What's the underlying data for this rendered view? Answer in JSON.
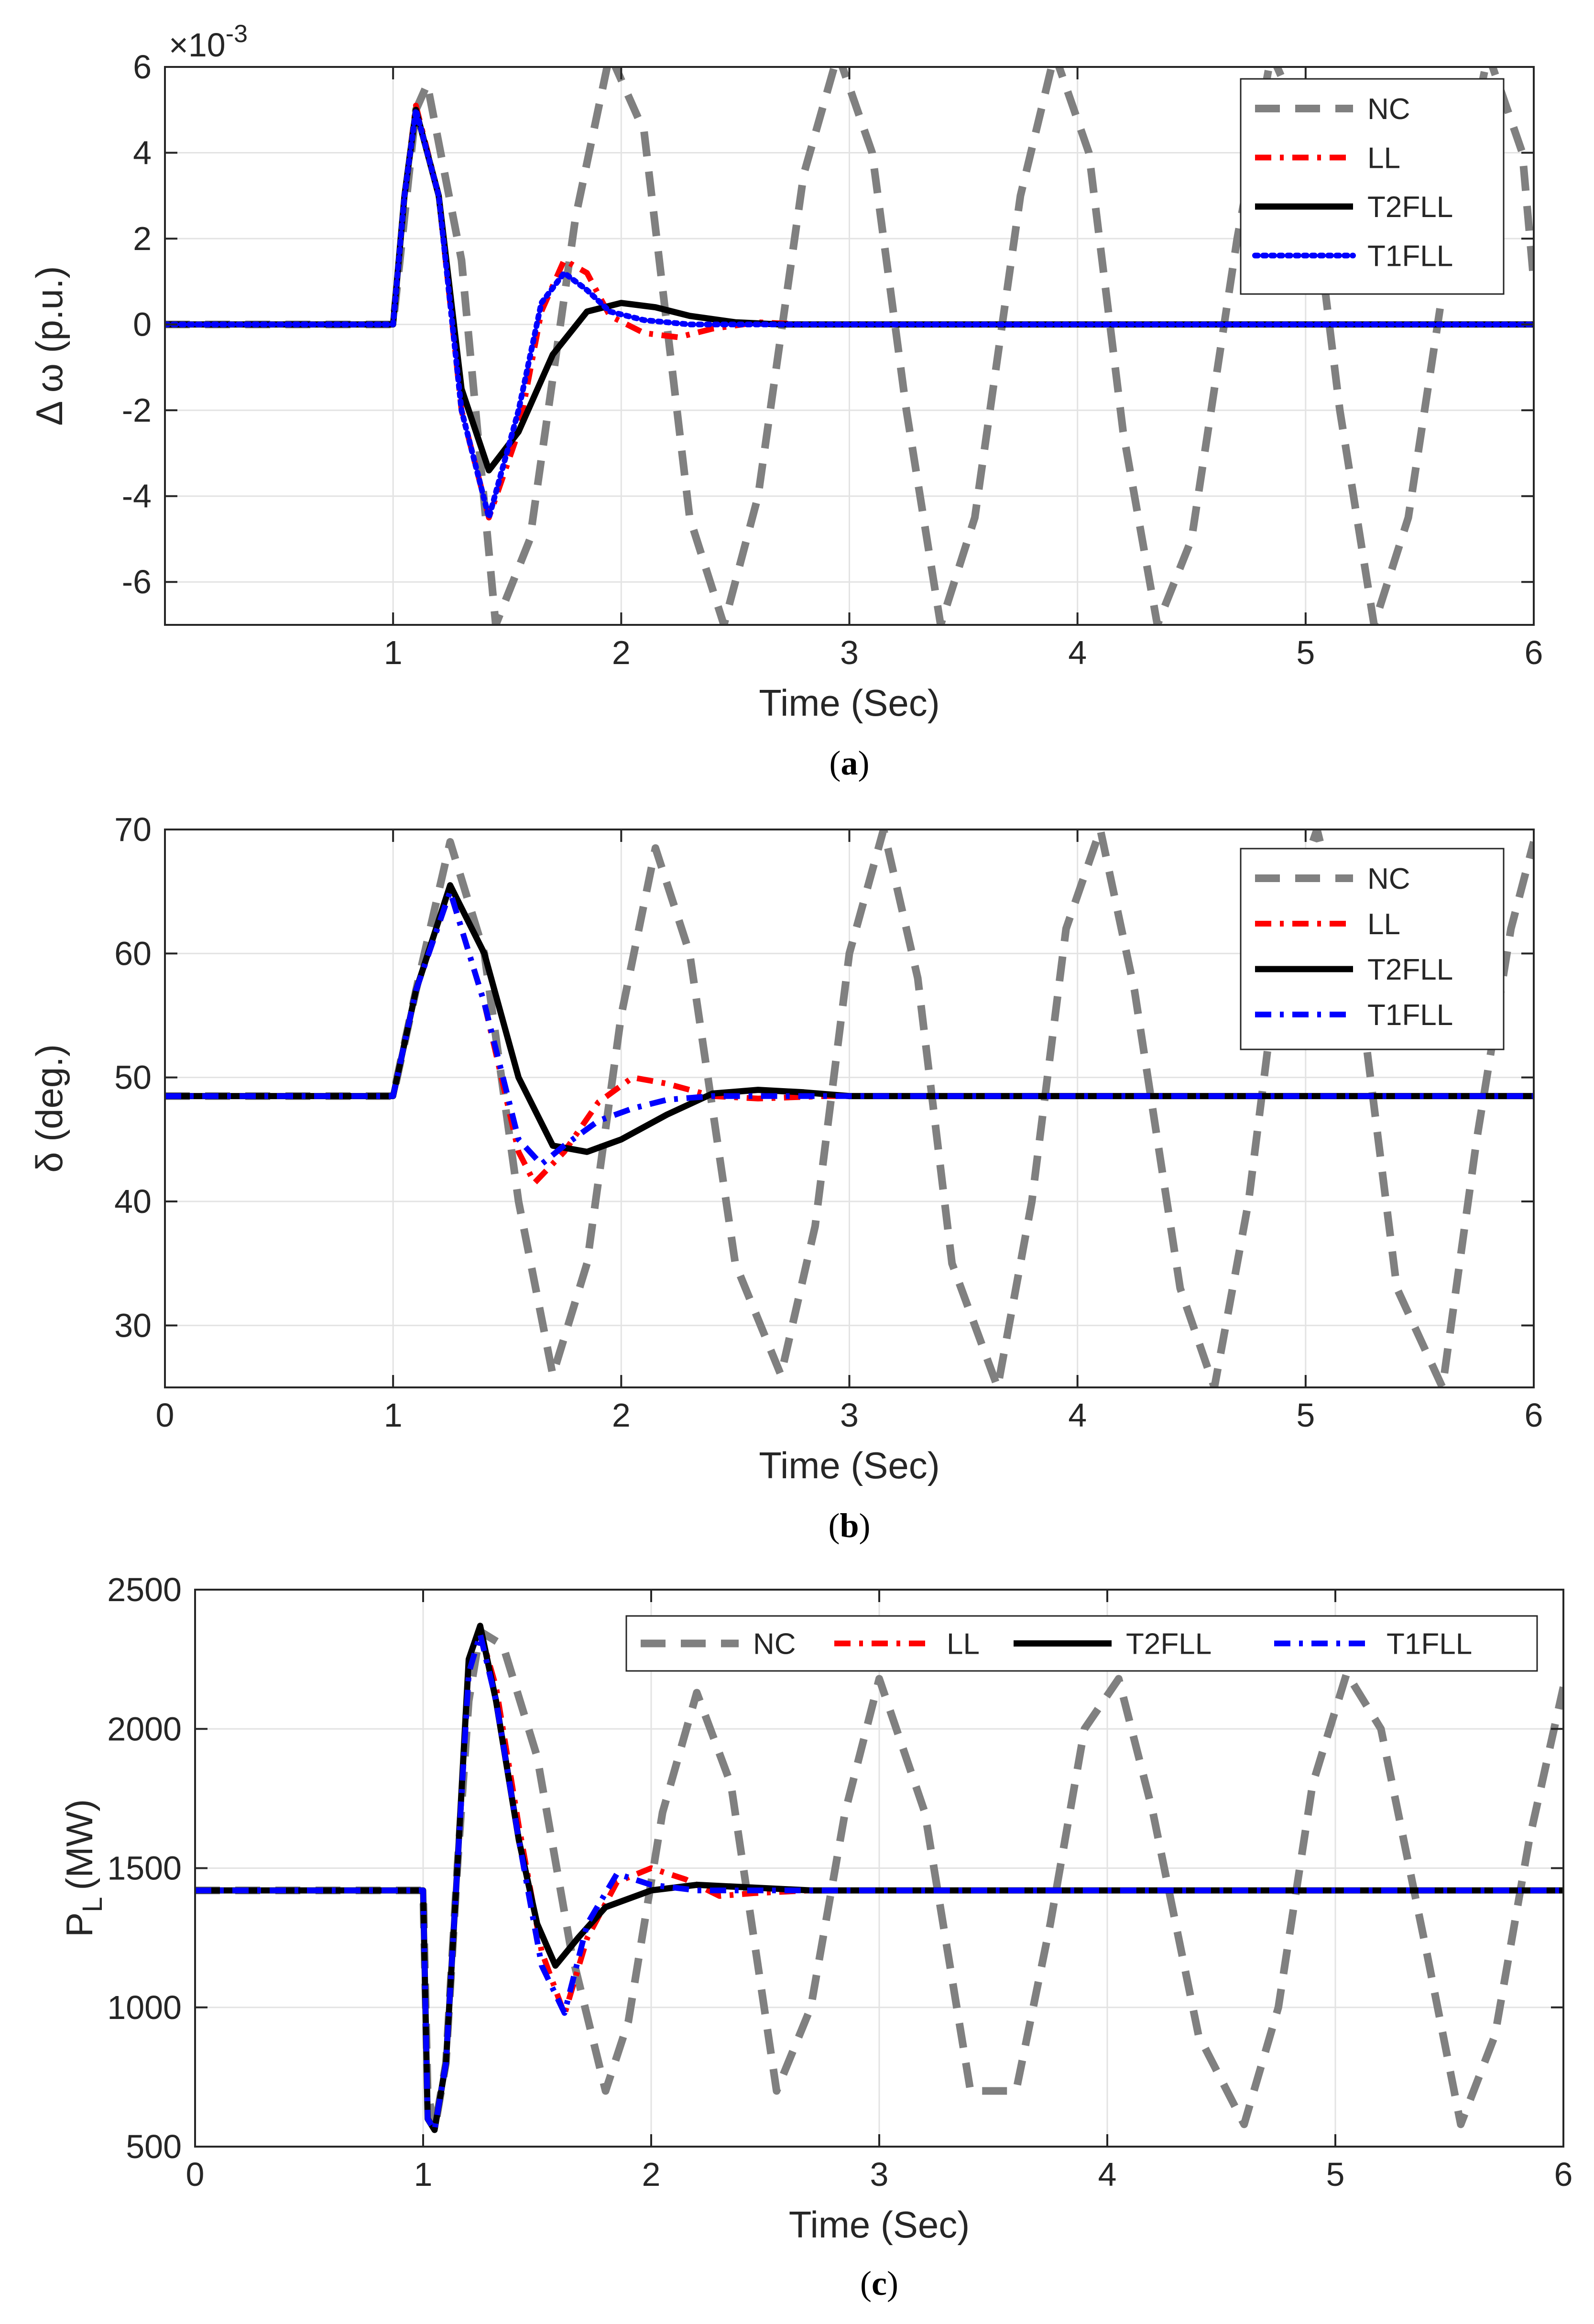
{
  "chart_data": [
    {
      "type": "line",
      "id": "a",
      "caption": "a",
      "xlabel": "Time (Sec)",
      "ylabel": "Δ ω (p.u.)",
      "exponent_label": "×10",
      "exponent_power": "-3",
      "xlim": [
        0,
        6
      ],
      "ylim": [
        -7,
        6
      ],
      "xticks": [
        "1",
        "2",
        "3",
        "4",
        "5",
        "6"
      ],
      "yticks": [
        "6",
        "4",
        "2",
        "0",
        "-2",
        "-4",
        "-6"
      ],
      "grid": true,
      "legend": {
        "placement": "top-right",
        "orientation": "vertical",
        "entries": [
          "NC",
          "LL",
          "T2FLL",
          "T1FLL"
        ]
      },
      "series": [
        {
          "name": "NC",
          "style": "dashed",
          "color": "#808080",
          "x": [
            0,
            1.0,
            1.1,
            1.15,
            1.3,
            1.45,
            1.6,
            1.8,
            1.95,
            2.1,
            2.3,
            2.45,
            2.6,
            2.8,
            2.95,
            3.1,
            3.25,
            3.4,
            3.55,
            3.75,
            3.9,
            4.05,
            4.2,
            4.35,
            4.5,
            4.7,
            4.85,
            5.0,
            5.15,
            5.3,
            5.45,
            5.65,
            5.8,
            5.95,
            6.0
          ],
          "y": [
            0,
            0,
            5.0,
            5.6,
            1.5,
            -7,
            -5,
            2.5,
            6.3,
            4.5,
            -4.5,
            -7,
            -4,
            3.5,
            6.3,
            4.0,
            -2.0,
            -7,
            -4.5,
            3.0,
            6.3,
            4.0,
            -2.5,
            -7,
            -5,
            2.0,
            6.3,
            4.5,
            -2.0,
            -7,
            -4.5,
            2.5,
            6.3,
            4.0,
            1.0
          ]
        },
        {
          "name": "LL",
          "style": "dashdot",
          "color": "#ff0000",
          "x": [
            0,
            1.0,
            1.05,
            1.1,
            1.2,
            1.3,
            1.42,
            1.55,
            1.65,
            1.75,
            1.85,
            1.95,
            2.1,
            2.25,
            2.4,
            2.6,
            2.8,
            6.0
          ],
          "y": [
            0,
            0,
            3.0,
            5.1,
            3.0,
            -2.0,
            -4.5,
            -2.5,
            0.3,
            1.5,
            1.2,
            0.2,
            -0.2,
            -0.3,
            -0.1,
            0.05,
            0,
            0
          ]
        },
        {
          "name": "T2FLL",
          "style": "solid",
          "color": "#000000",
          "x": [
            0,
            1.0,
            1.05,
            1.1,
            1.2,
            1.3,
            1.42,
            1.55,
            1.7,
            1.85,
            2.0,
            2.15,
            2.3,
            2.5,
            2.7,
            6.0
          ],
          "y": [
            0,
            0,
            3.0,
            5.0,
            3.0,
            -1.5,
            -3.4,
            -2.5,
            -0.7,
            0.3,
            0.5,
            0.4,
            0.2,
            0.05,
            0,
            0
          ]
        },
        {
          "name": "T1FLL",
          "style": "dotted",
          "color": "#0000ff",
          "x": [
            0,
            1.0,
            1.05,
            1.1,
            1.2,
            1.3,
            1.42,
            1.55,
            1.65,
            1.75,
            1.85,
            1.95,
            2.1,
            2.3,
            2.5,
            6.0
          ],
          "y": [
            0,
            0,
            3.0,
            5.0,
            3.0,
            -2.0,
            -4.5,
            -2.0,
            0.5,
            1.2,
            0.8,
            0.3,
            0.1,
            0,
            0,
            0
          ]
        }
      ]
    },
    {
      "type": "line",
      "id": "b",
      "caption": "b",
      "xlabel": "Time (Sec)",
      "ylabel": "δ (deg.)",
      "xlim": [
        0,
        6
      ],
      "ylim": [
        25,
        70
      ],
      "xticks": [
        "0",
        "1",
        "2",
        "3",
        "4",
        "5",
        "6"
      ],
      "yticks": [
        "70",
        "60",
        "50",
        "40",
        "30"
      ],
      "grid": true,
      "legend": {
        "placement": "top-right",
        "orientation": "vertical",
        "entries": [
          "NC",
          "LL",
          "T2FLL",
          "T1FLL"
        ]
      },
      "series": [
        {
          "name": "NC",
          "style": "dashed",
          "color": "#808080",
          "x": [
            0,
            1.0,
            1.1,
            1.25,
            1.4,
            1.55,
            1.7,
            1.85,
            2.0,
            2.15,
            2.3,
            2.5,
            2.7,
            2.85,
            3.0,
            3.15,
            3.3,
            3.45,
            3.65,
            3.8,
            3.95,
            4.1,
            4.25,
            4.45,
            4.6,
            4.75,
            4.9,
            5.05,
            5.25,
            5.4,
            5.6,
            5.75,
            5.9,
            6.0
          ],
          "y": [
            48.5,
            48.5,
            57,
            69,
            60,
            40,
            26,
            35,
            55,
            68.5,
            60,
            35,
            26,
            38,
            60,
            70,
            58,
            35,
            25,
            40,
            62,
            70,
            57,
            33,
            25,
            40,
            62,
            70,
            55,
            33,
            25,
            45,
            62,
            69
          ]
        },
        {
          "name": "LL",
          "style": "dashdot",
          "color": "#ff0000",
          "x": [
            0,
            1.0,
            1.1,
            1.25,
            1.4,
            1.55,
            1.62,
            1.75,
            1.9,
            2.05,
            2.2,
            2.4,
            2.6,
            2.9,
            6.0
          ],
          "y": [
            48.5,
            48.5,
            57,
            65,
            56,
            44,
            41.5,
            44,
            48,
            50,
            49.5,
            48.5,
            48.3,
            48.5,
            48.5
          ]
        },
        {
          "name": "T2FLL",
          "style": "solid",
          "color": "#000000",
          "x": [
            0,
            1.0,
            1.1,
            1.25,
            1.4,
            1.55,
            1.7,
            1.85,
            2.0,
            2.2,
            2.4,
            2.6,
            2.8,
            3.0,
            6.0
          ],
          "y": [
            48.5,
            48.5,
            57,
            65.5,
            60,
            50,
            44.5,
            44,
            45,
            47,
            48.7,
            49,
            48.8,
            48.5,
            48.5
          ]
        },
        {
          "name": "T1FLL",
          "style": "dashdot",
          "color": "#0000ff",
          "x": [
            0,
            1.0,
            1.1,
            1.25,
            1.4,
            1.55,
            1.65,
            1.75,
            1.9,
            2.05,
            2.2,
            2.4,
            2.6,
            6.0
          ],
          "y": [
            48.5,
            48.5,
            57,
            65,
            56,
            45,
            43,
            44.5,
            46.5,
            47.5,
            48.2,
            48.5,
            48.5,
            48.5
          ]
        }
      ]
    },
    {
      "type": "line",
      "id": "c",
      "caption": "c",
      "xlabel": "Time (Sec)",
      "ylabel": "P_L (MW)",
      "ylabel_main": "P",
      "ylabel_sub": "L",
      "ylabel_unit": "(MW)",
      "xlim": [
        0,
        6
      ],
      "ylim": [
        500,
        2500
      ],
      "xticks": [
        "0",
        "1",
        "2",
        "3",
        "4",
        "5",
        "6"
      ],
      "yticks": [
        "2500",
        "2000",
        "1500",
        "1000",
        "500"
      ],
      "grid": true,
      "legend": {
        "placement": "top-right",
        "orientation": "horizontal",
        "entries": [
          "NC",
          "LL",
          "T2FLL",
          "T1FLL"
        ]
      },
      "series": [
        {
          "name": "NC",
          "style": "dashed",
          "color": "#808080",
          "x": [
            0,
            1.0,
            1.02,
            1.05,
            1.1,
            1.15,
            1.2,
            1.25,
            1.35,
            1.5,
            1.65,
            1.8,
            1.9,
            2.05,
            2.2,
            2.35,
            2.55,
            2.7,
            2.85,
            3.0,
            3.2,
            3.4,
            3.6,
            3.75,
            3.9,
            4.05,
            4.2,
            4.4,
            4.6,
            4.75,
            4.9,
            5.05,
            5.2,
            5.4,
            5.55,
            5.7,
            5.85,
            6.0
          ],
          "y": [
            1420,
            1420,
            700,
            560,
            800,
            1500,
            2100,
            2350,
            2300,
            1900,
            1200,
            700,
            950,
            1700,
            2130,
            1800,
            700,
            1000,
            1700,
            2180,
            1700,
            700,
            700,
            1300,
            2000,
            2180,
            1700,
            900,
            580,
            1000,
            1800,
            2200,
            2000,
            1200,
            580,
            900,
            1600,
            2150
          ]
        },
        {
          "name": "LL",
          "style": "dashdot",
          "color": "#ff0000",
          "x": [
            0,
            1.0,
            1.02,
            1.05,
            1.1,
            1.15,
            1.2,
            1.25,
            1.32,
            1.42,
            1.52,
            1.62,
            1.72,
            1.85,
            2.0,
            2.15,
            2.3,
            2.45,
            2.7,
            6.0
          ],
          "y": [
            1420,
            1420,
            600,
            560,
            800,
            1500,
            2200,
            2350,
            2150,
            1650,
            1200,
            975,
            1250,
            1450,
            1500,
            1460,
            1400,
            1410,
            1420,
            1420
          ]
        },
        {
          "name": "T2FLL",
          "style": "solid",
          "color": "#000000",
          "x": [
            0,
            1.0,
            1.02,
            1.05,
            1.1,
            1.15,
            1.2,
            1.25,
            1.32,
            1.42,
            1.5,
            1.58,
            1.68,
            1.8,
            2.0,
            2.2,
            2.45,
            2.7,
            6.0
          ],
          "y": [
            1420,
            1420,
            600,
            560,
            800,
            1500,
            2250,
            2370,
            2100,
            1600,
            1300,
            1150,
            1250,
            1360,
            1420,
            1440,
            1430,
            1420,
            1420
          ]
        },
        {
          "name": "T1FLL",
          "style": "dashdot",
          "color": "#0000ff",
          "x": [
            0,
            1.0,
            1.02,
            1.05,
            1.1,
            1.15,
            1.2,
            1.25,
            1.32,
            1.42,
            1.52,
            1.62,
            1.72,
            1.85,
            2.0,
            2.2,
            2.4,
            6.0
          ],
          "y": [
            1420,
            1420,
            600,
            560,
            800,
            1500,
            2200,
            2340,
            2100,
            1600,
            1150,
            980,
            1300,
            1480,
            1440,
            1420,
            1420,
            1420
          ]
        }
      ]
    }
  ]
}
